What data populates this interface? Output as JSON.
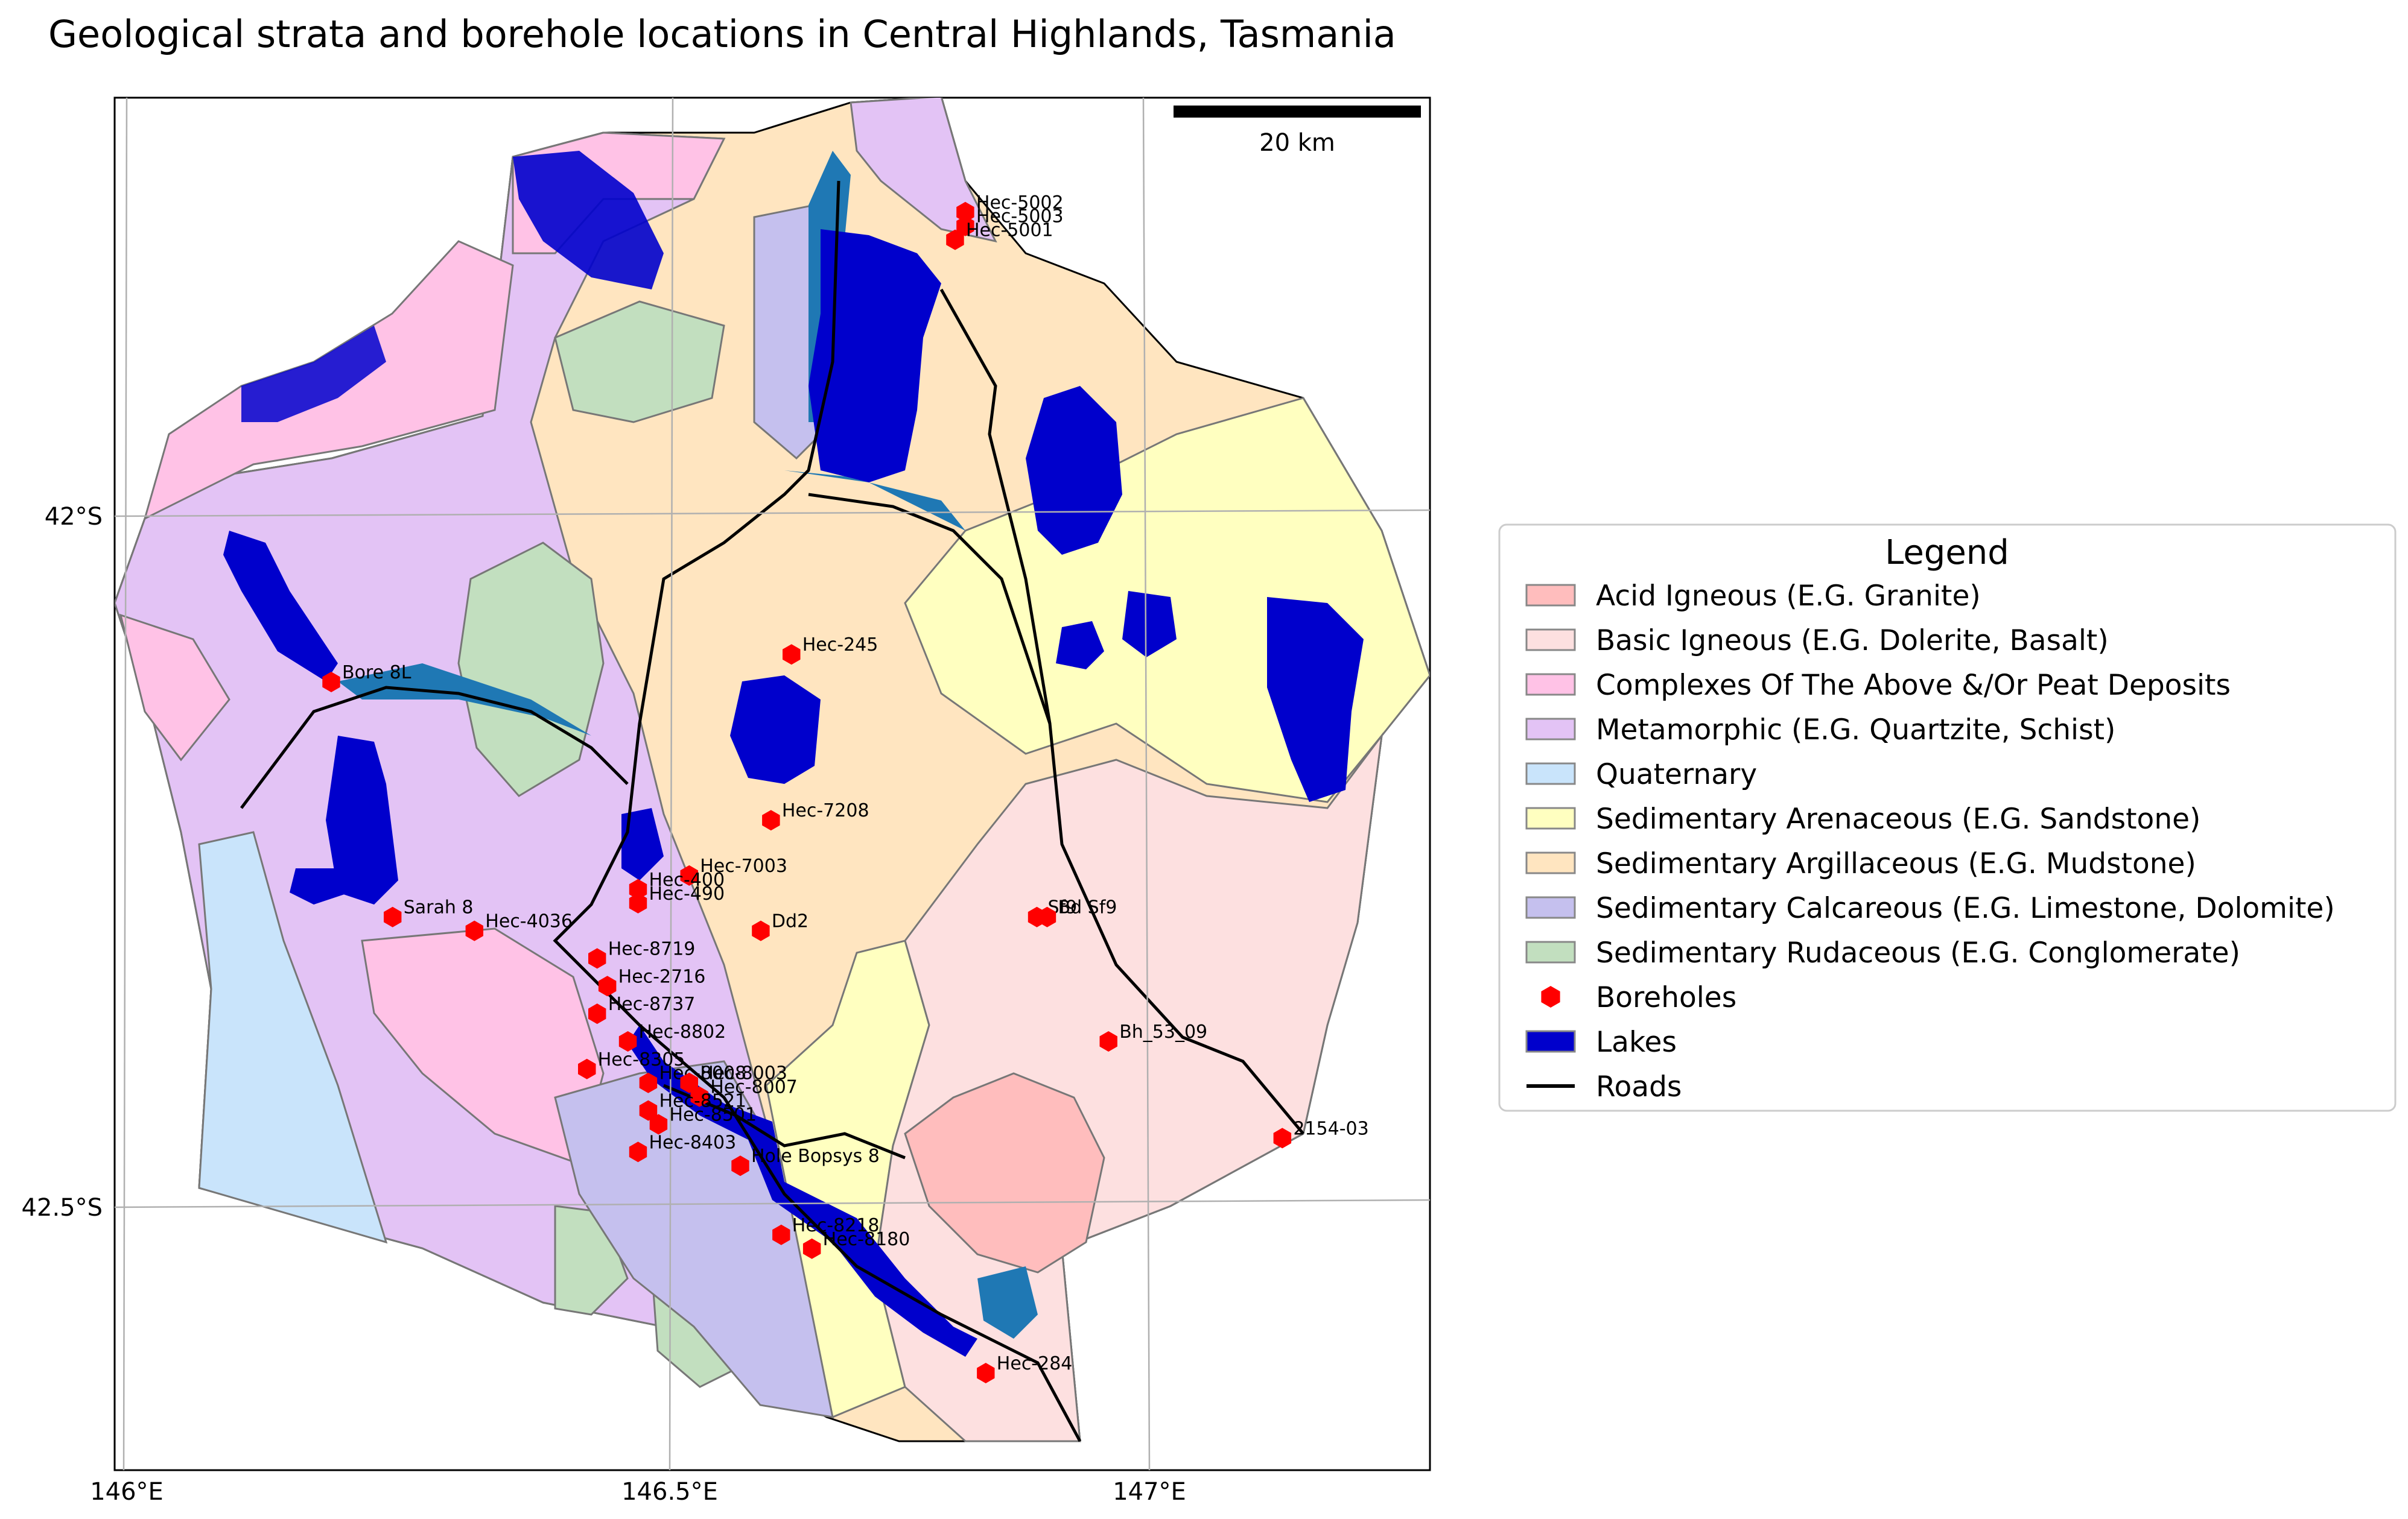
{
  "title": "Geological strata and borehole locations in Central Highlands, Tasmania",
  "scale_bar": {
    "label": "20 km",
    "distance_km": 20
  },
  "axes": {
    "x_ticks": [
      "146°E",
      "146.5°E",
      "147°E"
    ],
    "y_ticks": [
      "42°S",
      "42.5°S"
    ]
  },
  "legend": {
    "title": "Legend",
    "items": [
      {
        "label": "Acid Igneous (E.G. Granite)",
        "color": "#ffbdbd",
        "kind": "patch"
      },
      {
        "label": "Basic Igneous (E.G. Dolerite, Basalt)",
        "color": "#fde0e0",
        "kind": "patch"
      },
      {
        "label": "Complexes Of The Above &/Or Peat Deposits",
        "color": "#ffc2e6",
        "kind": "patch"
      },
      {
        "label": "Metamorphic (E.G. Quartzite, Schist)",
        "color": "#e3c3f5",
        "kind": "patch"
      },
      {
        "label": "Quaternary",
        "color": "#c9e4fb",
        "kind": "patch"
      },
      {
        "label": "Sedimentary Arenaceous (E.G. Sandstone)",
        "color": "#ffffc0",
        "kind": "patch"
      },
      {
        "label": "Sedimentary Argillaceous (E.G. Mudstone)",
        "color": "#ffe5c0",
        "kind": "patch"
      },
      {
        "label": "Sedimentary Calcareous (E.G. Limestone, Dolomite)",
        "color": "#c5c0ee",
        "kind": "patch"
      },
      {
        "label": "Sedimentary Rudaceous (E.G. Conglomerate)",
        "color": "#c2dfbf",
        "kind": "patch"
      },
      {
        "label": "Boreholes",
        "color": "#ff0000",
        "kind": "marker"
      },
      {
        "label": "Lakes",
        "color": "#0000cc",
        "kind": "patch"
      },
      {
        "label": "Roads",
        "color": "#000000",
        "kind": "line"
      }
    ]
  },
  "colors": {
    "lake": "#0000cc",
    "river_area": "#1f78b4",
    "road": "#000000",
    "borehole": "#ff0000"
  },
  "boreholes": [
    {
      "label": "Hec-5002",
      "lon": 146.82,
      "lat": -41.78
    },
    {
      "label": "Hec-5003",
      "lon": 146.82,
      "lat": -41.79
    },
    {
      "label": "Hec-5001",
      "lon": 146.81,
      "lat": -41.8
    },
    {
      "label": "Bore 8L",
      "lon": 146.2,
      "lat": -42.12
    },
    {
      "label": "Hec-245",
      "lon": 146.65,
      "lat": -42.1
    },
    {
      "label": "Hec-7208",
      "lon": 146.63,
      "lat": -42.22
    },
    {
      "label": "Hec-7003",
      "lon": 146.55,
      "lat": -42.26
    },
    {
      "label": "Hec-400",
      "lon": 146.5,
      "lat": -42.27
    },
    {
      "label": "Hec-490",
      "lon": 146.5,
      "lat": -42.28
    },
    {
      "label": "Dd2",
      "lon": 146.62,
      "lat": -42.3
    },
    {
      "label": "Sarah 8",
      "lon": 146.26,
      "lat": -42.29
    },
    {
      "label": "Hec-4036",
      "lon": 146.34,
      "lat": -42.3
    },
    {
      "label": "Sf9",
      "lon": 146.89,
      "lat": -42.29
    },
    {
      "label": "Bd Sf9",
      "lon": 146.9,
      "lat": -42.29
    },
    {
      "label": "Hec-8719",
      "lon": 146.46,
      "lat": -42.32
    },
    {
      "label": "Hec-2716",
      "lon": 146.47,
      "lat": -42.34
    },
    {
      "label": "Hec-8737",
      "lon": 146.46,
      "lat": -42.36
    },
    {
      "label": "Hec-8802",
      "lon": 146.49,
      "lat": -42.38
    },
    {
      "label": "Bh_53_09",
      "lon": 146.96,
      "lat": -42.38
    },
    {
      "label": "Hec-8305",
      "lon": 146.45,
      "lat": -42.4
    },
    {
      "label": "Hec-8008",
      "lon": 146.51,
      "lat": -42.41
    },
    {
      "label": "Hec-8003",
      "lon": 146.55,
      "lat": -42.41
    },
    {
      "label": "Hec-8007",
      "lon": 146.56,
      "lat": -42.42
    },
    {
      "label": "Hec-8521",
      "lon": 146.51,
      "lat": -42.43
    },
    {
      "label": "Hec-8501",
      "lon": 146.52,
      "lat": -42.44
    },
    {
      "label": "2154-03",
      "lon": 147.13,
      "lat": -42.45
    },
    {
      "label": "Hec-8403",
      "lon": 146.5,
      "lat": -42.46
    },
    {
      "label": "Hole Bopsys 8",
      "lon": 146.6,
      "lat": -42.47
    },
    {
      "label": "Hec-8218",
      "lon": 146.64,
      "lat": -42.52
    },
    {
      "label": "Hec-8180",
      "lon": 146.67,
      "lat": -42.53
    },
    {
      "label": "Hec-284",
      "lon": 146.84,
      "lat": -42.62
    }
  ]
}
